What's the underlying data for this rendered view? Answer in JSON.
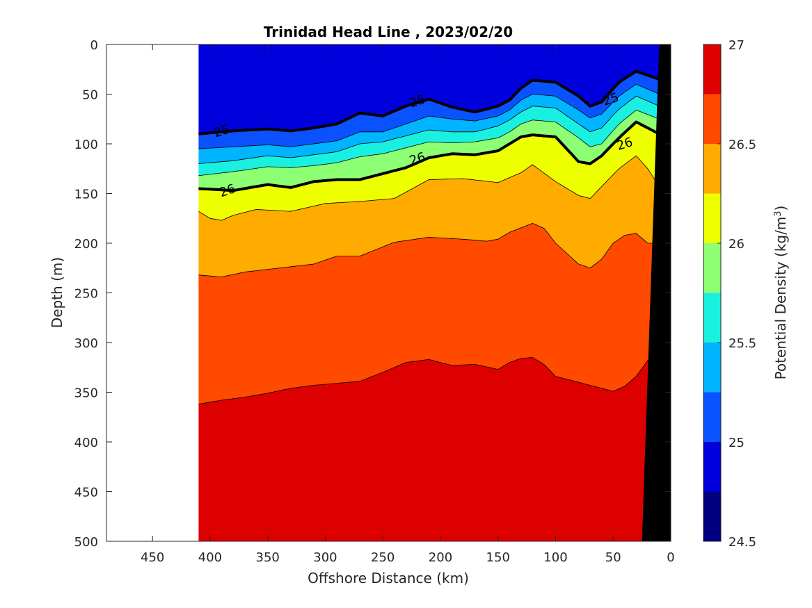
{
  "chart_data": {
    "type": "contour",
    "title": "Trinidad Head Line , 2023/02/20",
    "xlabel": "Offshore Distance (km)",
    "ylabel": "Depth (m)",
    "xlim": [
      490,
      0
    ],
    "ylim": [
      0,
      500
    ],
    "x_direction": "reversed",
    "y_direction": "reversed (depth increases downward)",
    "x_ticks": [
      "450",
      "400",
      "350",
      "300",
      "250",
      "200",
      "150",
      "100",
      "50",
      "0"
    ],
    "y_ticks": [
      "0",
      "50",
      "100",
      "150",
      "200",
      "250",
      "300",
      "350",
      "400",
      "450",
      "500"
    ],
    "data_extent_x_km": [
      410,
      10
    ],
    "colorbar": {
      "label_prefix": "Potential Density (kg/m",
      "label_sup": "3",
      "label_suffix": ")",
      "range": [
        24.5,
        27
      ],
      "tick_labels": [
        "24.5",
        "25",
        "25.5",
        "26",
        "26.5",
        "27"
      ],
      "levels": [
        24.5,
        24.75,
        25.0,
        25.25,
        25.5,
        25.75,
        26.0,
        26.25,
        26.5,
        26.75,
        27.0
      ],
      "colors": [
        "#000080",
        "#0000dd",
        "#0a52ff",
        "#00b4ff",
        "#19f0e0",
        "#8cff73",
        "#eeff00",
        "#ffab00",
        "#ff4a00",
        "#dd0000"
      ]
    },
    "isopycnals": [
      {
        "level": 24.75,
        "x": [
          410,
          380,
          340,
          300,
          260,
          220,
          180,
          160,
          140,
          120,
          100,
          80,
          70,
          60,
          45,
          30,
          10
        ],
        "depth": [
          0,
          0,
          0,
          0,
          0,
          0,
          0,
          0,
          0,
          0,
          0,
          0,
          0,
          0,
          0,
          0,
          0
        ]
      },
      {
        "level": 25.0,
        "x": [
          410,
          380,
          350,
          330,
          310,
          290,
          270,
          250,
          230,
          210,
          190,
          170,
          150,
          140,
          130,
          120,
          100,
          80,
          70,
          60,
          45,
          30,
          10
        ],
        "depth": [
          90,
          87,
          85,
          87,
          84,
          80,
          69,
          72,
          62,
          55,
          63,
          68,
          62,
          56,
          44,
          36,
          38,
          52,
          62,
          58,
          38,
          27,
          35
        ]
      },
      {
        "level": 25.25,
        "x": [
          410,
          380,
          350,
          330,
          310,
          290,
          270,
          250,
          230,
          210,
          190,
          170,
          150,
          140,
          130,
          120,
          100,
          80,
          70,
          60,
          45,
          30,
          10
        ],
        "depth": [
          105,
          103,
          101,
          103,
          100,
          97,
          88,
          88,
          80,
          72,
          75,
          77,
          72,
          66,
          56,
          50,
          52,
          66,
          74,
          70,
          52,
          40,
          50
        ]
      },
      {
        "level": 25.5,
        "x": [
          410,
          380,
          350,
          330,
          310,
          290,
          270,
          250,
          230,
          210,
          190,
          170,
          150,
          140,
          130,
          120,
          100,
          80,
          70,
          60,
          45,
          30,
          10
        ],
        "depth": [
          120,
          117,
          112,
          114,
          111,
          108,
          100,
          98,
          92,
          86,
          88,
          88,
          82,
          76,
          68,
          62,
          64,
          80,
          88,
          84,
          65,
          52,
          62
        ]
      },
      {
        "level": 25.75,
        "x": [
          410,
          380,
          350,
          330,
          310,
          290,
          270,
          250,
          230,
          210,
          190,
          170,
          150,
          140,
          130,
          120,
          100,
          80,
          70,
          60,
          45,
          30,
          10
        ],
        "depth": [
          132,
          128,
          123,
          124,
          122,
          119,
          113,
          110,
          104,
          98,
          99,
          98,
          94,
          88,
          80,
          76,
          78,
          94,
          103,
          100,
          80,
          66,
          75
        ]
      },
      {
        "level": 26.0,
        "x": [
          410,
          380,
          350,
          330,
          310,
          290,
          270,
          250,
          230,
          210,
          190,
          170,
          150,
          140,
          130,
          120,
          100,
          80,
          70,
          60,
          45,
          30,
          10
        ],
        "depth": [
          145,
          147,
          141,
          144,
          138,
          136,
          136,
          130,
          124,
          114,
          110,
          111,
          107,
          100,
          93,
          91,
          93,
          118,
          120,
          112,
          94,
          78,
          90
        ]
      },
      {
        "level": 26.25,
        "x": [
          410,
          400,
          390,
          380,
          360,
          330,
          300,
          270,
          240,
          210,
          180,
          150,
          130,
          120,
          100,
          80,
          70,
          60,
          45,
          30,
          20,
          10
        ],
        "depth": [
          168,
          175,
          177,
          172,
          166,
          168,
          160,
          158,
          155,
          136,
          135,
          139,
          129,
          121,
          138,
          152,
          155,
          143,
          125,
          112,
          125,
          143
        ]
      },
      {
        "level": 26.5,
        "x": [
          410,
          390,
          370,
          340,
          310,
          290,
          270,
          240,
          210,
          180,
          160,
          150,
          140,
          120,
          110,
          100,
          80,
          70,
          60,
          50,
          40,
          30,
          20
        ],
        "depth": [
          232,
          234,
          229,
          225,
          221,
          213,
          213,
          199,
          194,
          196,
          198,
          196,
          189,
          180,
          185,
          200,
          221,
          225,
          216,
          200,
          192,
          190,
          200
        ]
      },
      {
        "level": 26.75,
        "x": [
          410,
          390,
          370,
          350,
          330,
          310,
          290,
          270,
          250,
          230,
          210,
          190,
          170,
          150,
          140,
          130,
          120,
          110,
          100,
          80,
          70,
          60,
          50,
          40,
          30,
          20
        ],
        "depth": [
          362,
          358,
          355,
          351,
          346,
          343,
          341,
          339,
          330,
          320,
          317,
          323,
          322,
          327,
          320,
          316,
          315,
          322,
          334,
          340,
          343,
          346,
          349,
          344,
          334,
          318
        ]
      }
    ],
    "inline_labels": [
      {
        "text": "25",
        "x": 390,
        "depth": 87
      },
      {
        "text": "25",
        "x": 220,
        "depth": 57
      },
      {
        "text": "25",
        "x": 52,
        "depth": 55
      },
      {
        "text": "26",
        "x": 385,
        "depth": 147
      },
      {
        "text": "26",
        "x": 220,
        "depth": 115
      },
      {
        "text": "26",
        "x": 40,
        "depth": 100
      }
    ],
    "bathymetry": {
      "x": [
        0,
        25,
        10,
        0
      ],
      "depth": [
        500,
        500,
        0,
        0
      ],
      "color": "#000000"
    }
  }
}
